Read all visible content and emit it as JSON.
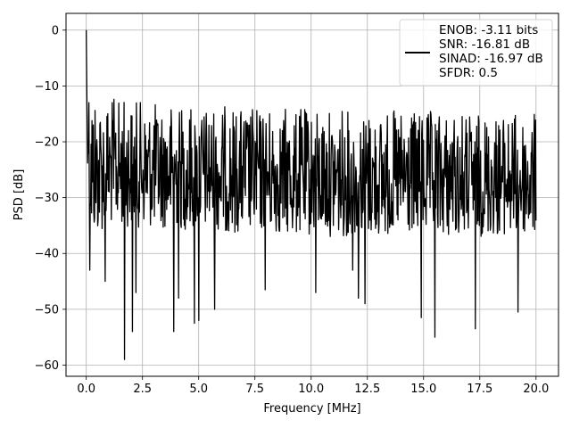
{
  "chart_data": {
    "type": "line",
    "xlabel": "Frequency [MHz]",
    "ylabel": "PSD [dB]",
    "xlim": [
      -0.9,
      21.0
    ],
    "ylim": [
      -62,
      3
    ],
    "xticks": [
      0.0,
      2.5,
      5.0,
      7.5,
      10.0,
      12.5,
      15.0,
      17.5,
      20.0
    ],
    "xtick_labels": [
      "0.0",
      "2.5",
      "5.0",
      "7.5",
      "10.0",
      "12.5",
      "15.0",
      "17.5",
      "20.0"
    ],
    "yticks": [
      0,
      -10,
      -20,
      -30,
      -40,
      -50,
      -60
    ],
    "ytick_labels": [
      "0",
      "−10",
      "−20",
      "−30",
      "−40",
      "−50",
      "−60"
    ],
    "grid": true,
    "legend_position": "top-right",
    "line_color": "#000000",
    "legend_lines": [
      "ENOB: -3.11 bits",
      "SNR: -16.81 dB",
      "SINAD: -16.97 dB",
      "SFDR: 0.5"
    ],
    "series": [
      {
        "x_start": 0.0,
        "x_end": 20.0,
        "samples": 1024,
        "peak": {
          "x": 0.0,
          "y": 0.0
        },
        "upper_envelope": [
          [
            0.0,
            -1
          ],
          [
            0.1,
            -8
          ],
          [
            0.5,
            -11
          ],
          [
            1.0,
            -12
          ],
          [
            3.0,
            -13
          ],
          [
            6.0,
            -13.5
          ],
          [
            10.0,
            -14
          ],
          [
            15.0,
            -14.5
          ],
          [
            20.0,
            -15
          ]
        ],
        "lower_envelope": [
          [
            0.0,
            -18
          ],
          [
            0.2,
            -38
          ],
          [
            1.0,
            -35
          ],
          [
            5.0,
            -36
          ],
          [
            10.0,
            -37
          ],
          [
            15.0,
            -37
          ],
          [
            20.0,
            -37
          ]
        ],
        "deep_nulls": [
          {
            "x": 0.15,
            "y": -43
          },
          {
            "x": 0.85,
            "y": -45
          },
          {
            "x": 1.7,
            "y": -59
          },
          {
            "x": 2.05,
            "y": -54
          },
          {
            "x": 2.2,
            "y": -47
          },
          {
            "x": 3.9,
            "y": -54
          },
          {
            "x": 4.1,
            "y": -48
          },
          {
            "x": 4.8,
            "y": -52.5
          },
          {
            "x": 5.0,
            "y": -52
          },
          {
            "x": 5.7,
            "y": -50
          },
          {
            "x": 7.95,
            "y": -46.5
          },
          {
            "x": 10.2,
            "y": -47
          },
          {
            "x": 11.85,
            "y": -43
          },
          {
            "x": 12.1,
            "y": -48
          },
          {
            "x": 12.4,
            "y": -49
          },
          {
            "x": 14.9,
            "y": -51.5
          },
          {
            "x": 15.5,
            "y": -55
          },
          {
            "x": 17.3,
            "y": -53.5
          },
          {
            "x": 19.2,
            "y": -50.5
          }
        ]
      }
    ]
  }
}
